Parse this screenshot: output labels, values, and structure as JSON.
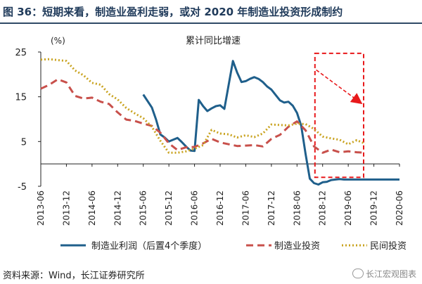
{
  "header": {
    "title": "图 36：短期来看，制造业盈利走弱，或对 2020 年制造业投资形成制约"
  },
  "footer": {
    "source": "资料来源：Wind，长江证券研究所"
  },
  "watermark": {
    "text": "长江宏观图表"
  },
  "chart_data": {
    "type": "line",
    "title": "累计同比增速",
    "unit_label": "(%)",
    "ylim": [
      -5,
      25
    ],
    "yticks": [
      -5,
      5,
      15,
      25
    ],
    "x": [
      "2013-06",
      "2013-09",
      "2013-12",
      "2014-03",
      "2014-06",
      "2014-09",
      "2014-12",
      "2015-03",
      "2015-06",
      "2015-09",
      "2015-12",
      "2016-03",
      "2016-06",
      "2016-09",
      "2016-12",
      "2017-03",
      "2017-06",
      "2017-09",
      "2017-12",
      "2018-03",
      "2018-06",
      "2018-09",
      "2018-12",
      "2019-03",
      "2019-06",
      "2019-09",
      "2019-12",
      "2020-03",
      "2020-06"
    ],
    "xtick_labels": [
      "2013-06",
      "2013-12",
      "2014-06",
      "2014-12",
      "2015-06",
      "2015-12",
      "2016-06",
      "2016-12",
      "2017-06",
      "2017-12",
      "2018-06",
      "2018-12",
      "2019-06",
      "2019-12",
      "2020-06"
    ],
    "grid": false,
    "legend_position": "bottom",
    "series": [
      {
        "name": "制造业利润（后置4个季度）",
        "color": "#1f5f8b",
        "style": "solid",
        "x": [
          8.0,
          8.67,
          9.0,
          9.33,
          9.67,
          10.0,
          10.67,
          11.0,
          11.33,
          11.67,
          12.0,
          12.33,
          12.67,
          13.0,
          13.33,
          13.67,
          14.0,
          14.33,
          15.0,
          15.33,
          15.67,
          16.0,
          16.33,
          16.67,
          17.0,
          17.33,
          17.67,
          18.0,
          18.33,
          18.67,
          19.0,
          19.33,
          19.67,
          20.0,
          20.33,
          20.67,
          21.0,
          21.33,
          21.67,
          22.0,
          22.33,
          22.67,
          23.0,
          23.33,
          23.67,
          24.0,
          24.33,
          24.67,
          25.0,
          25.33,
          25.67,
          26.0,
          26.33,
          26.67,
          27.0,
          27.33,
          27.67,
          28.0
        ],
        "y": [
          15.5,
          12.6,
          9.9,
          6.6,
          5.9,
          5.0,
          5.8,
          4.9,
          3.9,
          3.0,
          2.9,
          14.3,
          12.9,
          11.8,
          12.4,
          12.9,
          13.1,
          12.3,
          23.0,
          20.4,
          18.3,
          18.5,
          19.0,
          19.4,
          19.0,
          18.3,
          17.3,
          16.6,
          15.4,
          14.2,
          13.7,
          13.9,
          13.0,
          11.4,
          8.5,
          2.2,
          -3.3,
          -4.3,
          -4.6,
          -4.1,
          -4.0,
          -3.6,
          -3.5,
          -3.4,
          -3.5,
          -3.5,
          -3.5,
          -3.5,
          -3.5,
          -3.5,
          -3.5,
          -3.5,
          -3.5,
          -3.5,
          -3.5,
          -3.5,
          -3.5,
          -3.5
        ]
      },
      {
        "name": "制造业投资",
        "color": "#c8504b",
        "style": "dashed",
        "x": [
          0,
          0.67,
          1.33,
          2.0,
          2.67,
          3.33,
          4.0,
          4.67,
          5.33,
          6.0,
          6.67,
          7.33,
          8.0,
          8.67,
          9.33,
          10.0,
          10.67,
          11.33,
          12.0,
          12.67,
          13.33,
          14.0,
          14.67,
          15.33,
          16.0,
          16.67,
          17.33,
          18.0,
          18.67,
          19.33,
          20.0,
          20.67,
          21.33,
          22.0,
          22.67,
          23.33,
          24.0,
          24.67,
          25.33
        ],
        "y": [
          16.8,
          17.7,
          18.9,
          18.2,
          15.2,
          14.6,
          14.8,
          13.9,
          13.4,
          11.5,
          9.9,
          9.6,
          9.0,
          8.5,
          7.0,
          4.6,
          3.1,
          3.7,
          3.8,
          4.6,
          5.6,
          4.8,
          4.4,
          4.0,
          4.1,
          4.2,
          3.9,
          5.6,
          6.5,
          8.3,
          9.5,
          7.5,
          3.9,
          2.5,
          3.2,
          2.6,
          2.8,
          2.6,
          2.5
        ]
      },
      {
        "name": "民间投资",
        "color": "#c9a320",
        "style": "dotted",
        "x": [
          0,
          0.67,
          1.33,
          2.0,
          2.67,
          3.33,
          4.0,
          4.67,
          5.33,
          6.0,
          6.67,
          7.33,
          8.0,
          8.67,
          9.33,
          10.0,
          10.67,
          11.33,
          12.0,
          12.67,
          13.33,
          14.0,
          14.67,
          15.33,
          16.0,
          16.67,
          17.33,
          18.0,
          18.67,
          19.33,
          20.0,
          20.67,
          21.33,
          22.0,
          22.67,
          23.33,
          24.0,
          24.67,
          25.33
        ],
        "y": [
          23.3,
          23.4,
          23.2,
          23.0,
          20.9,
          19.8,
          18.1,
          17.7,
          15.6,
          14.4,
          12.5,
          11.3,
          10.2,
          8.3,
          5.2,
          2.5,
          2.5,
          2.8,
          3.4,
          4.2,
          7.6,
          6.8,
          6.6,
          5.9,
          6.4,
          6.0,
          6.8,
          8.8,
          8.7,
          8.6,
          9.0,
          8.9,
          7.8,
          6.1,
          5.7,
          5.4,
          4.4,
          5.3,
          4.5
        ]
      }
    ],
    "annotations": [
      {
        "type": "dashed-box",
        "color": "#e8191b",
        "x_range": [
          21.4,
          25.2
        ],
        "y_range": [
          -3.0,
          24.7
        ]
      },
      {
        "type": "dashed-arrow",
        "color": "#e8191b",
        "from": [
          21.5,
          21.0
        ],
        "to": [
          24.9,
          13.8
        ]
      }
    ]
  }
}
